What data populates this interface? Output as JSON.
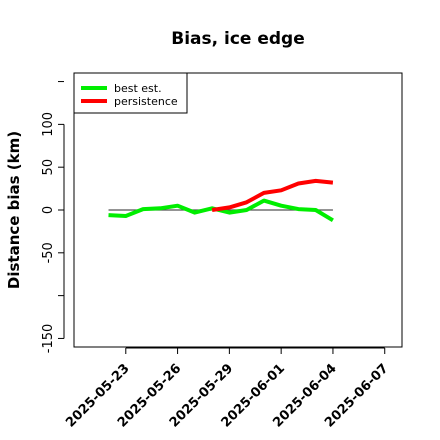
{
  "chart_data": {
    "type": "line",
    "title": "Bias, ice edge",
    "xlabel": "",
    "ylabel": "Distance bias (km)",
    "xlim": [
      "2025-05-20",
      "2025-06-08"
    ],
    "ylim": [
      -160,
      160
    ],
    "yticks": [
      -150,
      -50,
      0,
      50,
      100
    ],
    "xticks": [
      "2025-05-23",
      "2025-05-26",
      "2025-05-29",
      "2025-06-01",
      "2025-06-04",
      "2025-06-07"
    ],
    "reference_line": {
      "y": 0,
      "from": "2025-05-22",
      "to": "2025-06-04"
    },
    "legend": {
      "position": "top-left"
    },
    "series": [
      {
        "name": "best est.",
        "color": "#00ee00",
        "x": [
          "2025-05-22",
          "2025-05-23",
          "2025-05-24",
          "2025-05-25",
          "2025-05-26",
          "2025-05-27",
          "2025-05-28",
          "2025-05-29",
          "2025-05-30",
          "2025-05-31",
          "2025-06-01",
          "2025-06-02",
          "2025-06-03",
          "2025-06-04"
        ],
        "y": [
          -6,
          -7,
          1,
          2,
          5,
          -3,
          2,
          -3,
          0,
          11,
          5,
          1,
          0,
          -12
        ]
      },
      {
        "name": "persistence",
        "color": "#ff0000",
        "x": [
          "2025-05-28",
          "2025-05-29",
          "2025-05-30",
          "2025-05-31",
          "2025-06-01",
          "2025-06-02",
          "2025-06-03",
          "2025-06-04"
        ],
        "y": [
          0,
          3,
          9,
          20,
          23,
          31,
          34,
          32
        ]
      }
    ]
  }
}
